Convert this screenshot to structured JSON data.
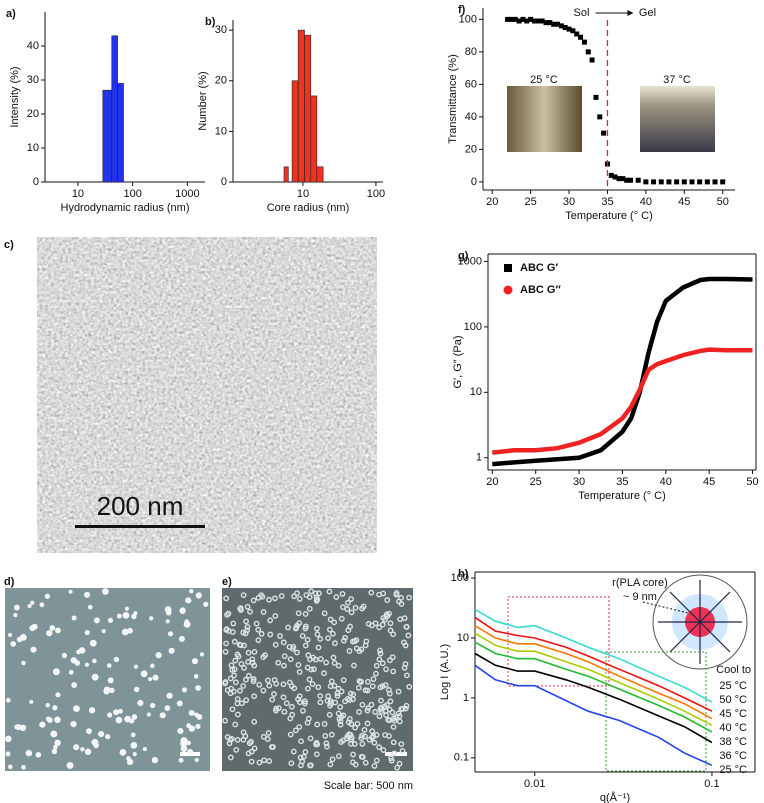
{
  "chart_data": [
    {
      "type": "histogram",
      "panel_label": "a)",
      "xlabel": "Hydrodynamic radius (nm)",
      "ylabel": "Intensity (%)",
      "xscale": "log",
      "bins": [
        28.5,
        41.5,
        53,
        68
      ],
      "values": [
        27,
        43,
        29
      ],
      "color": "#2233ee",
      "xlim": [
        2.5,
        2100
      ],
      "ylim": [
        0,
        50
      ],
      "xticks": [
        10,
        100,
        1000
      ],
      "yticks": [
        0,
        10,
        20,
        30,
        40
      ]
    },
    {
      "type": "histogram",
      "panel_label": "b)",
      "xlabel": "Core radius (nm)",
      "ylabel": "Number (%)",
      "xscale": "log",
      "bins": [
        5.5,
        6.3,
        7.1,
        8.6,
        10.5,
        12.8,
        15.5,
        18.9
      ],
      "values": [
        3,
        0,
        20,
        30,
        29,
        17,
        3
      ],
      "color": "#ee3322",
      "xlim": [
        1.1,
        125
      ],
      "ylim": [
        0,
        32
      ],
      "xticks": [
        10,
        100
      ],
      "yticks": [
        0,
        10,
        20,
        30
      ]
    },
    {
      "type": "scatter",
      "panel_label": "f)",
      "xlabel": "Temperature (° C)",
      "ylabel": "Transmittance (%)",
      "color": "#000000",
      "x": [
        22,
        22.5,
        23,
        23.5,
        24,
        24.5,
        25,
        25.5,
        26,
        26.5,
        27,
        27.5,
        28,
        28.5,
        29,
        29.5,
        30,
        30.5,
        31,
        31.5,
        32,
        32.5,
        33,
        33.5,
        34,
        34.5,
        35,
        35.5,
        36,
        36.5,
        37,
        37.5,
        38,
        39,
        40,
        41,
        42,
        43,
        44,
        45,
        46,
        47,
        48,
        49,
        50
      ],
      "values": [
        100,
        100,
        100,
        99,
        100,
        99,
        100,
        99,
        99,
        99,
        98,
        98,
        97,
        97,
        96,
        95,
        94,
        93,
        91,
        89,
        86,
        80,
        75,
        52,
        40,
        30,
        11,
        4,
        3,
        2,
        2,
        1,
        1,
        1,
        0,
        0,
        0,
        0,
        0,
        0,
        0,
        0,
        0,
        0,
        0
      ],
      "xlim": [
        18.8,
        51.6
      ],
      "ylim": [
        -5,
        107
      ],
      "xticks": [
        20,
        25,
        30,
        35,
        40,
        45,
        50
      ],
      "yticks": [
        0,
        20,
        40,
        60,
        80,
        100
      ],
      "dashed_line_x": 35,
      "annotations": [
        "Sol",
        "Gel",
        "25 °C",
        "37 °C"
      ]
    },
    {
      "type": "line",
      "panel_label": "g)",
      "xlabel": "Temperature (° C)",
      "ylabel": "G′, G″ (Pa)",
      "yscale": "log",
      "x": [
        20,
        22.5,
        25,
        27.5,
        30,
        32.5,
        35,
        36,
        37,
        38,
        39,
        40,
        42,
        44,
        45,
        47,
        50
      ],
      "series": [
        {
          "name": "ABC G′",
          "color": "#000000",
          "values": [
            0.8,
            0.85,
            0.9,
            0.95,
            1.0,
            1.3,
            2.5,
            4,
            10,
            40,
            120,
            250,
            400,
            520,
            540,
            540,
            530
          ]
        },
        {
          "name": "ABC G″",
          "color": "#ee2222",
          "values": [
            1.2,
            1.3,
            1.3,
            1.4,
            1.7,
            2.3,
            4,
            6,
            11,
            22,
            27,
            30,
            37,
            43,
            45,
            44,
            44
          ]
        }
      ],
      "xlim": [
        19.5,
        50.4
      ],
      "ylim": [
        0.65,
        1300
      ],
      "xticks": [
        20,
        25,
        30,
        35,
        40,
        45,
        50
      ],
      "yticks": [
        1,
        10,
        100,
        1000
      ]
    },
    {
      "type": "line",
      "panel_label": "h)",
      "xlabel": "q(Å⁻¹)",
      "ylabel": "Log I (A.U.)",
      "xscale": "log",
      "yscale": "log",
      "x": [
        0.0046,
        0.006,
        0.008,
        0.01,
        0.015,
        0.02,
        0.03,
        0.05,
        0.07,
        0.1
      ],
      "series": [
        {
          "name": "25 °C",
          "color": "#33ddcc",
          "values": [
            30,
            19,
            15,
            16,
            10,
            7,
            4.5,
            2.3,
            1.5,
            0.85
          ]
        },
        {
          "name": "50 °C",
          "color": "#ee1111",
          "values": [
            22,
            13,
            11,
            10,
            7,
            5,
            3,
            1.6,
            1.0,
            0.6
          ]
        },
        {
          "name": "45 °C",
          "color": "#ff7700",
          "values": [
            16,
            10,
            8,
            8,
            5.5,
            4,
            2.3,
            1.2,
            0.8,
            0.45
          ]
        },
        {
          "name": "40 °C",
          "color": "#aacc00",
          "values": [
            12,
            7.5,
            6,
            6,
            4,
            3,
            1.8,
            0.95,
            0.6,
            0.35
          ]
        },
        {
          "name": "38 °C",
          "color": "#22bb33",
          "values": [
            8.5,
            5.5,
            4.5,
            4.5,
            3,
            2.3,
            1.4,
            0.75,
            0.48,
            0.27
          ]
        },
        {
          "name": "36 °C",
          "color": "#000000",
          "values": [
            5.5,
            3.5,
            2.8,
            2.8,
            2,
            1.5,
            0.95,
            0.5,
            0.33,
            0.18
          ]
        },
        {
          "name": "25 °C",
          "color": "#2244ee",
          "values": [
            3.5,
            2,
            1.6,
            1.6,
            0.9,
            0.6,
            0.42,
            0.22,
            0.12,
            0.075
          ]
        }
      ],
      "legend_title": "Cool to",
      "annotations": [
        "r(PLA core)",
        "~ 9 nm"
      ],
      "xlim": [
        0.0046,
        0.175
      ],
      "ylim": [
        0.058,
        126
      ],
      "xticks": [
        0.01,
        0.1
      ],
      "yticks": [
        0.1,
        1,
        10,
        100
      ]
    }
  ],
  "images": [
    {
      "panel_label": "c)",
      "scale_text": "200 nm"
    },
    {
      "panel_label": "d)"
    },
    {
      "panel_label": "e)",
      "caption": "Scale bar: 500 nm"
    }
  ]
}
